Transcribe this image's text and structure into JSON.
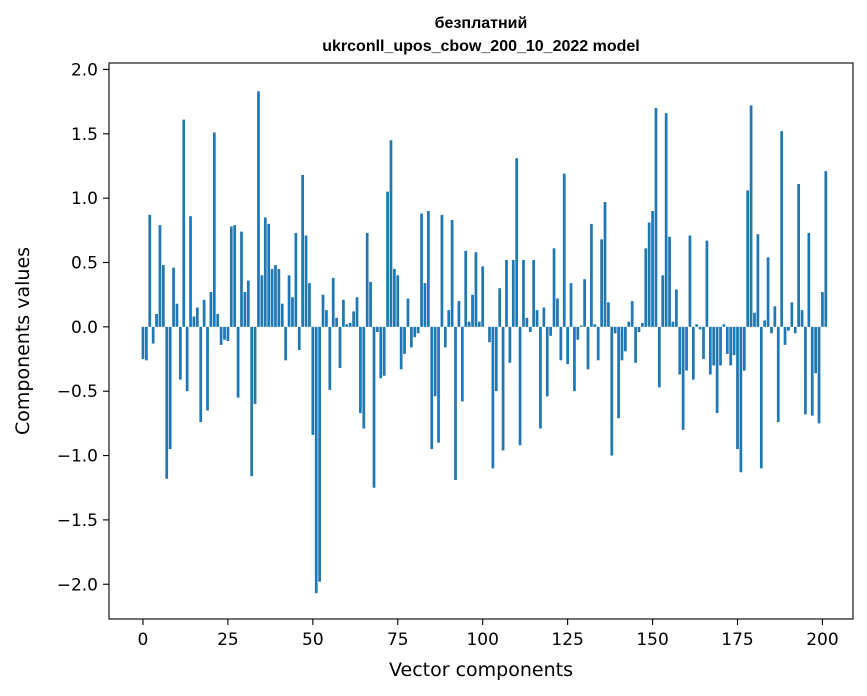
{
  "chart_data": {
    "type": "bar",
    "title_line1": "безплатний",
    "title_line2": "ukrconll_upos_cbow_200_10_2022 model",
    "xlabel": "Vector components",
    "ylabel": "Components values",
    "xlim": [
      -10,
      209
    ],
    "ylim": [
      -2.27,
      2.05
    ],
    "xticks": [
      0,
      25,
      50,
      75,
      100,
      125,
      150,
      175,
      200
    ],
    "yticks": [
      -2.0,
      -1.5,
      -1.0,
      -0.5,
      0.0,
      0.5,
      1.0,
      1.5,
      2.0
    ],
    "ytick_labels": [
      "−2.0",
      "−1.5",
      "−1.0",
      "−0.5",
      "0.0",
      "0.5",
      "1.0",
      "1.5",
      "2.0"
    ],
    "bar_color": "#1f77b4",
    "bar_width": 0.8,
    "values": [
      -0.25,
      -0.26,
      0.87,
      -0.13,
      0.1,
      0.79,
      0.48,
      -1.18,
      -0.95,
      0.46,
      0.18,
      -0.41,
      1.61,
      -0.5,
      0.86,
      0.08,
      0.15,
      -0.74,
      0.21,
      -0.65,
      0.27,
      1.51,
      0.1,
      -0.14,
      -0.1,
      -0.11,
      0.78,
      0.79,
      -0.55,
      0.74,
      0.27,
      0.36,
      -1.16,
      -0.6,
      1.83,
      0.4,
      0.85,
      0.8,
      0.45,
      0.48,
      0.45,
      0.18,
      -0.26,
      0.4,
      0.23,
      0.73,
      -0.18,
      1.18,
      0.71,
      0.34,
      -0.84,
      -2.07,
      -1.98,
      0.25,
      0.13,
      -0.49,
      0.38,
      0.07,
      -0.32,
      0.21,
      0.02,
      0.03,
      0.12,
      0.23,
      -0.67,
      -0.79,
      0.73,
      0.35,
      -1.25,
      -0.04,
      -0.4,
      -0.38,
      1.05,
      1.45,
      0.45,
      0.4,
      -0.33,
      -0.21,
      0.22,
      -0.16,
      -0.08,
      -0.05,
      0.88,
      0.34,
      0.9,
      -0.95,
      -0.54,
      -0.9,
      0.87,
      -0.16,
      0.13,
      0.83,
      -1.19,
      0.2,
      -0.58,
      0.59,
      0.04,
      0.25,
      0.58,
      0.04,
      0.47,
      0.0,
      -0.12,
      -1.1,
      -0.5,
      0.3,
      -0.96,
      0.52,
      -0.28,
      0.52,
      1.31,
      -0.92,
      0.52,
      0.07,
      -0.04,
      0.52,
      0.13,
      -0.79,
      0.15,
      -0.54,
      -0.07,
      0.61,
      0.22,
      -0.26,
      1.19,
      -0.29,
      0.34,
      -0.5,
      -0.1,
      0.01,
      0.37,
      -0.33,
      0.8,
      0.02,
      -0.26,
      0.68,
      0.97,
      0.19,
      -1.0,
      -0.05,
      -0.71,
      -0.26,
      -0.19,
      0.04,
      0.2,
      -0.28,
      -0.04,
      0.03,
      0.61,
      0.81,
      0.9,
      1.7,
      -0.47,
      0.4,
      1.66,
      0.7,
      0.04,
      0.29,
      -0.37,
      -0.8,
      -0.34,
      0.71,
      -0.41,
      0.02,
      -0.02,
      -0.25,
      0.67,
      -0.37,
      -0.3,
      -0.67,
      -0.3,
      0.02,
      -0.21,
      -0.3,
      -0.22,
      -0.95,
      -1.13,
      -0.34,
      1.06,
      1.72,
      0.11,
      0.72,
      -1.1,
      0.05,
      0.54,
      -0.05,
      0.16,
      -0.74,
      1.52,
      -0.14,
      -0.03,
      0.19,
      -0.05,
      1.11,
      0.13,
      -0.68,
      0.73,
      -0.69,
      -0.36,
      -0.75,
      0.27,
      1.21
    ]
  }
}
